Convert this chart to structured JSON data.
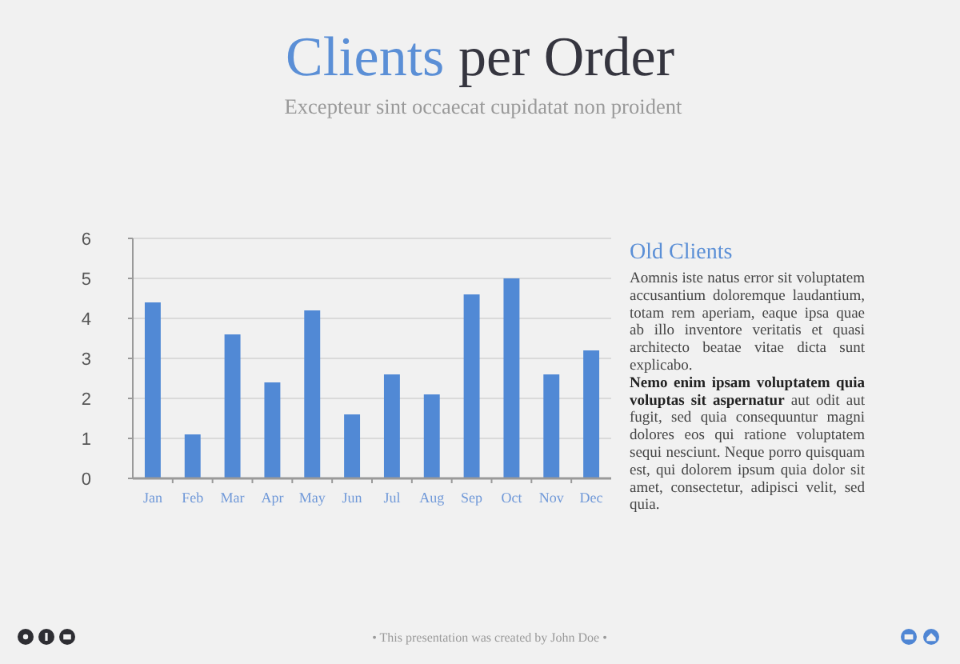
{
  "chart_data": {
    "type": "bar",
    "title": "Clients per Order",
    "subtitle": "Excepteur sint occaecat cupidatat non proident",
    "categories": [
      "Jan",
      "Feb",
      "Mar",
      "Apr",
      "May",
      "Jun",
      "Jul",
      "Aug",
      "Sep",
      "Oct",
      "Nov",
      "Dec"
    ],
    "values": [
      4.4,
      1.1,
      3.6,
      2.4,
      4.2,
      1.6,
      2.6,
      2.1,
      4.6,
      5.0,
      2.6,
      3.2
    ],
    "color": "#5189d5",
    "ylim": [
      0,
      6
    ],
    "yticks": [
      0,
      1,
      2,
      3,
      4,
      5,
      6
    ],
    "grid": "y",
    "annotations": [
      "Old Clients",
      "Aomnis iste natus error sit voluptatem accusantium doloremque laudantium, totam rem aperiam, eaque ipsa quae ab illo inventore veritatis et quasi architecto beatae vitae dicta sunt explicabo.",
      "Nemo enim ipsam voluptatem quia voluptas sit aspernatur",
      "aut odit aut fugit, sed quia consequuntur magni dolores eos qui ratione voluptatem sequi nesciunt. Neque porro quisquam est, qui dolorem ipsum quia dolor sit amet, consectetur, adipisci velit, sed quia.",
      "• This presentation was created by John Doe •"
    ]
  }
}
